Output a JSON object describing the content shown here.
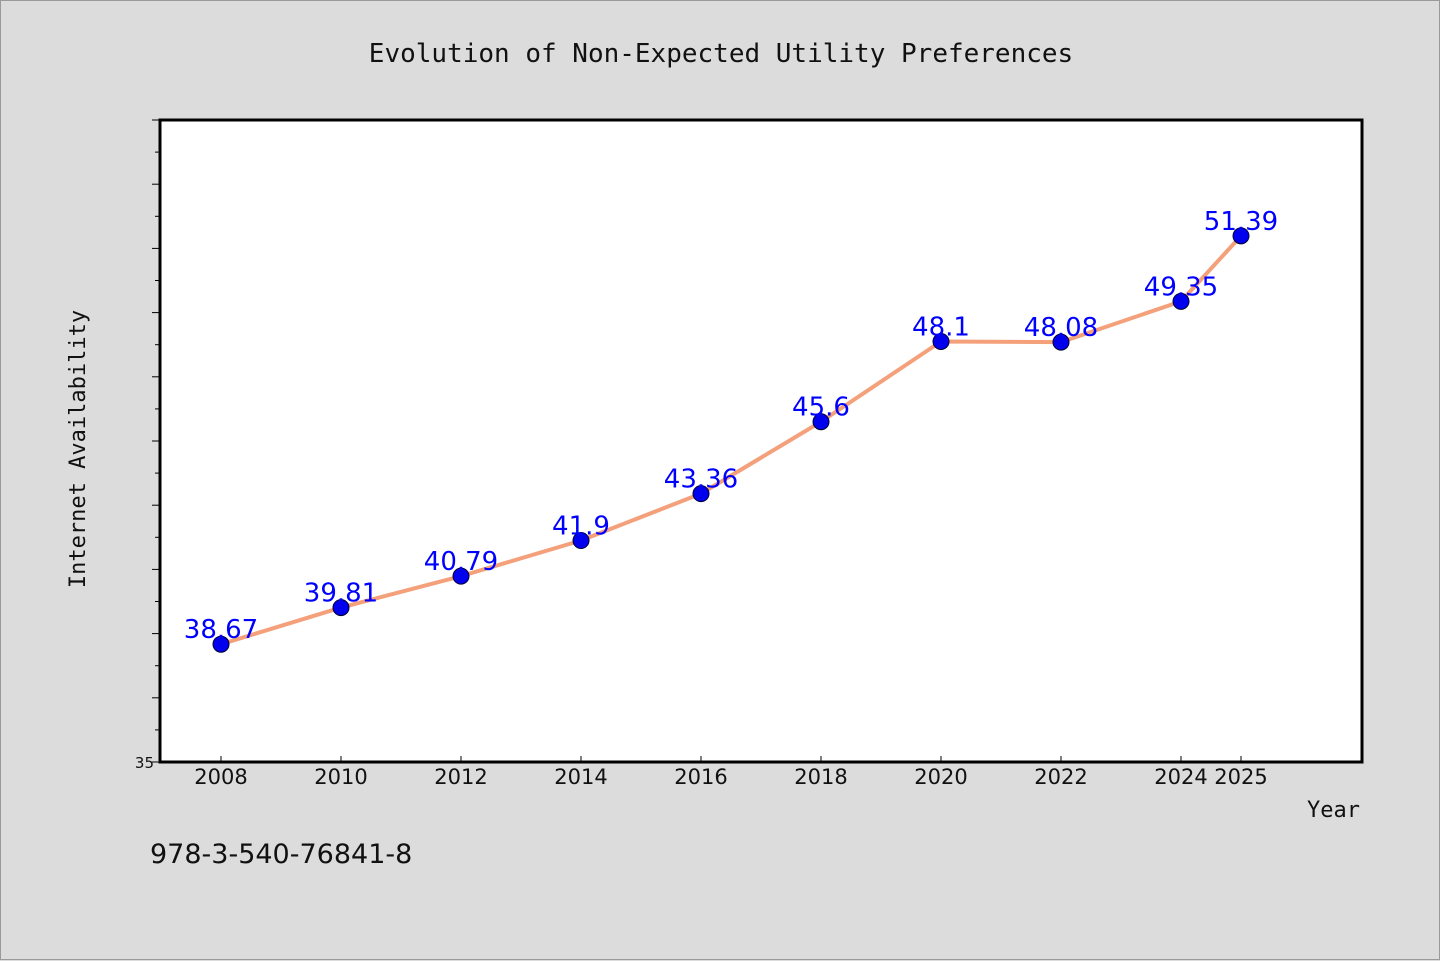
{
  "chart_data": {
    "type": "line",
    "title": "Evolution of Non-Expected Utility Preferences",
    "xlabel": "Year",
    "ylabel": "Internet Availability",
    "x": [
      2008,
      2010,
      2012,
      2014,
      2016,
      2018,
      2020,
      2022,
      2024,
      2025
    ],
    "xticks": [
      "2008",
      "2010",
      "2012",
      "2014",
      "2016",
      "2018",
      "2020",
      "2022",
      "2024",
      "2025"
    ],
    "series": [
      {
        "values": [
          38.67,
          39.81,
          40.79,
          41.9,
          43.36,
          45.6,
          48.1,
          48.08,
          49.35,
          51.39
        ],
        "labels": [
          "38.67",
          "39.81",
          "40.79",
          "41.9",
          "43.36",
          "45.6",
          "48.1",
          "48.08",
          "49.35",
          "51.39"
        ],
        "line_color": "#f4a07a",
        "marker_color": "#0000ee"
      }
    ],
    "xlim": [
      2007,
      2030
    ],
    "ylim": [
      35,
      55
    ],
    "yticks_labeled": [
      "35"
    ],
    "grid": false,
    "legend": "none",
    "label_color": "#0000ff"
  },
  "footer": {
    "isbn": "978-3-540-76841-8"
  }
}
